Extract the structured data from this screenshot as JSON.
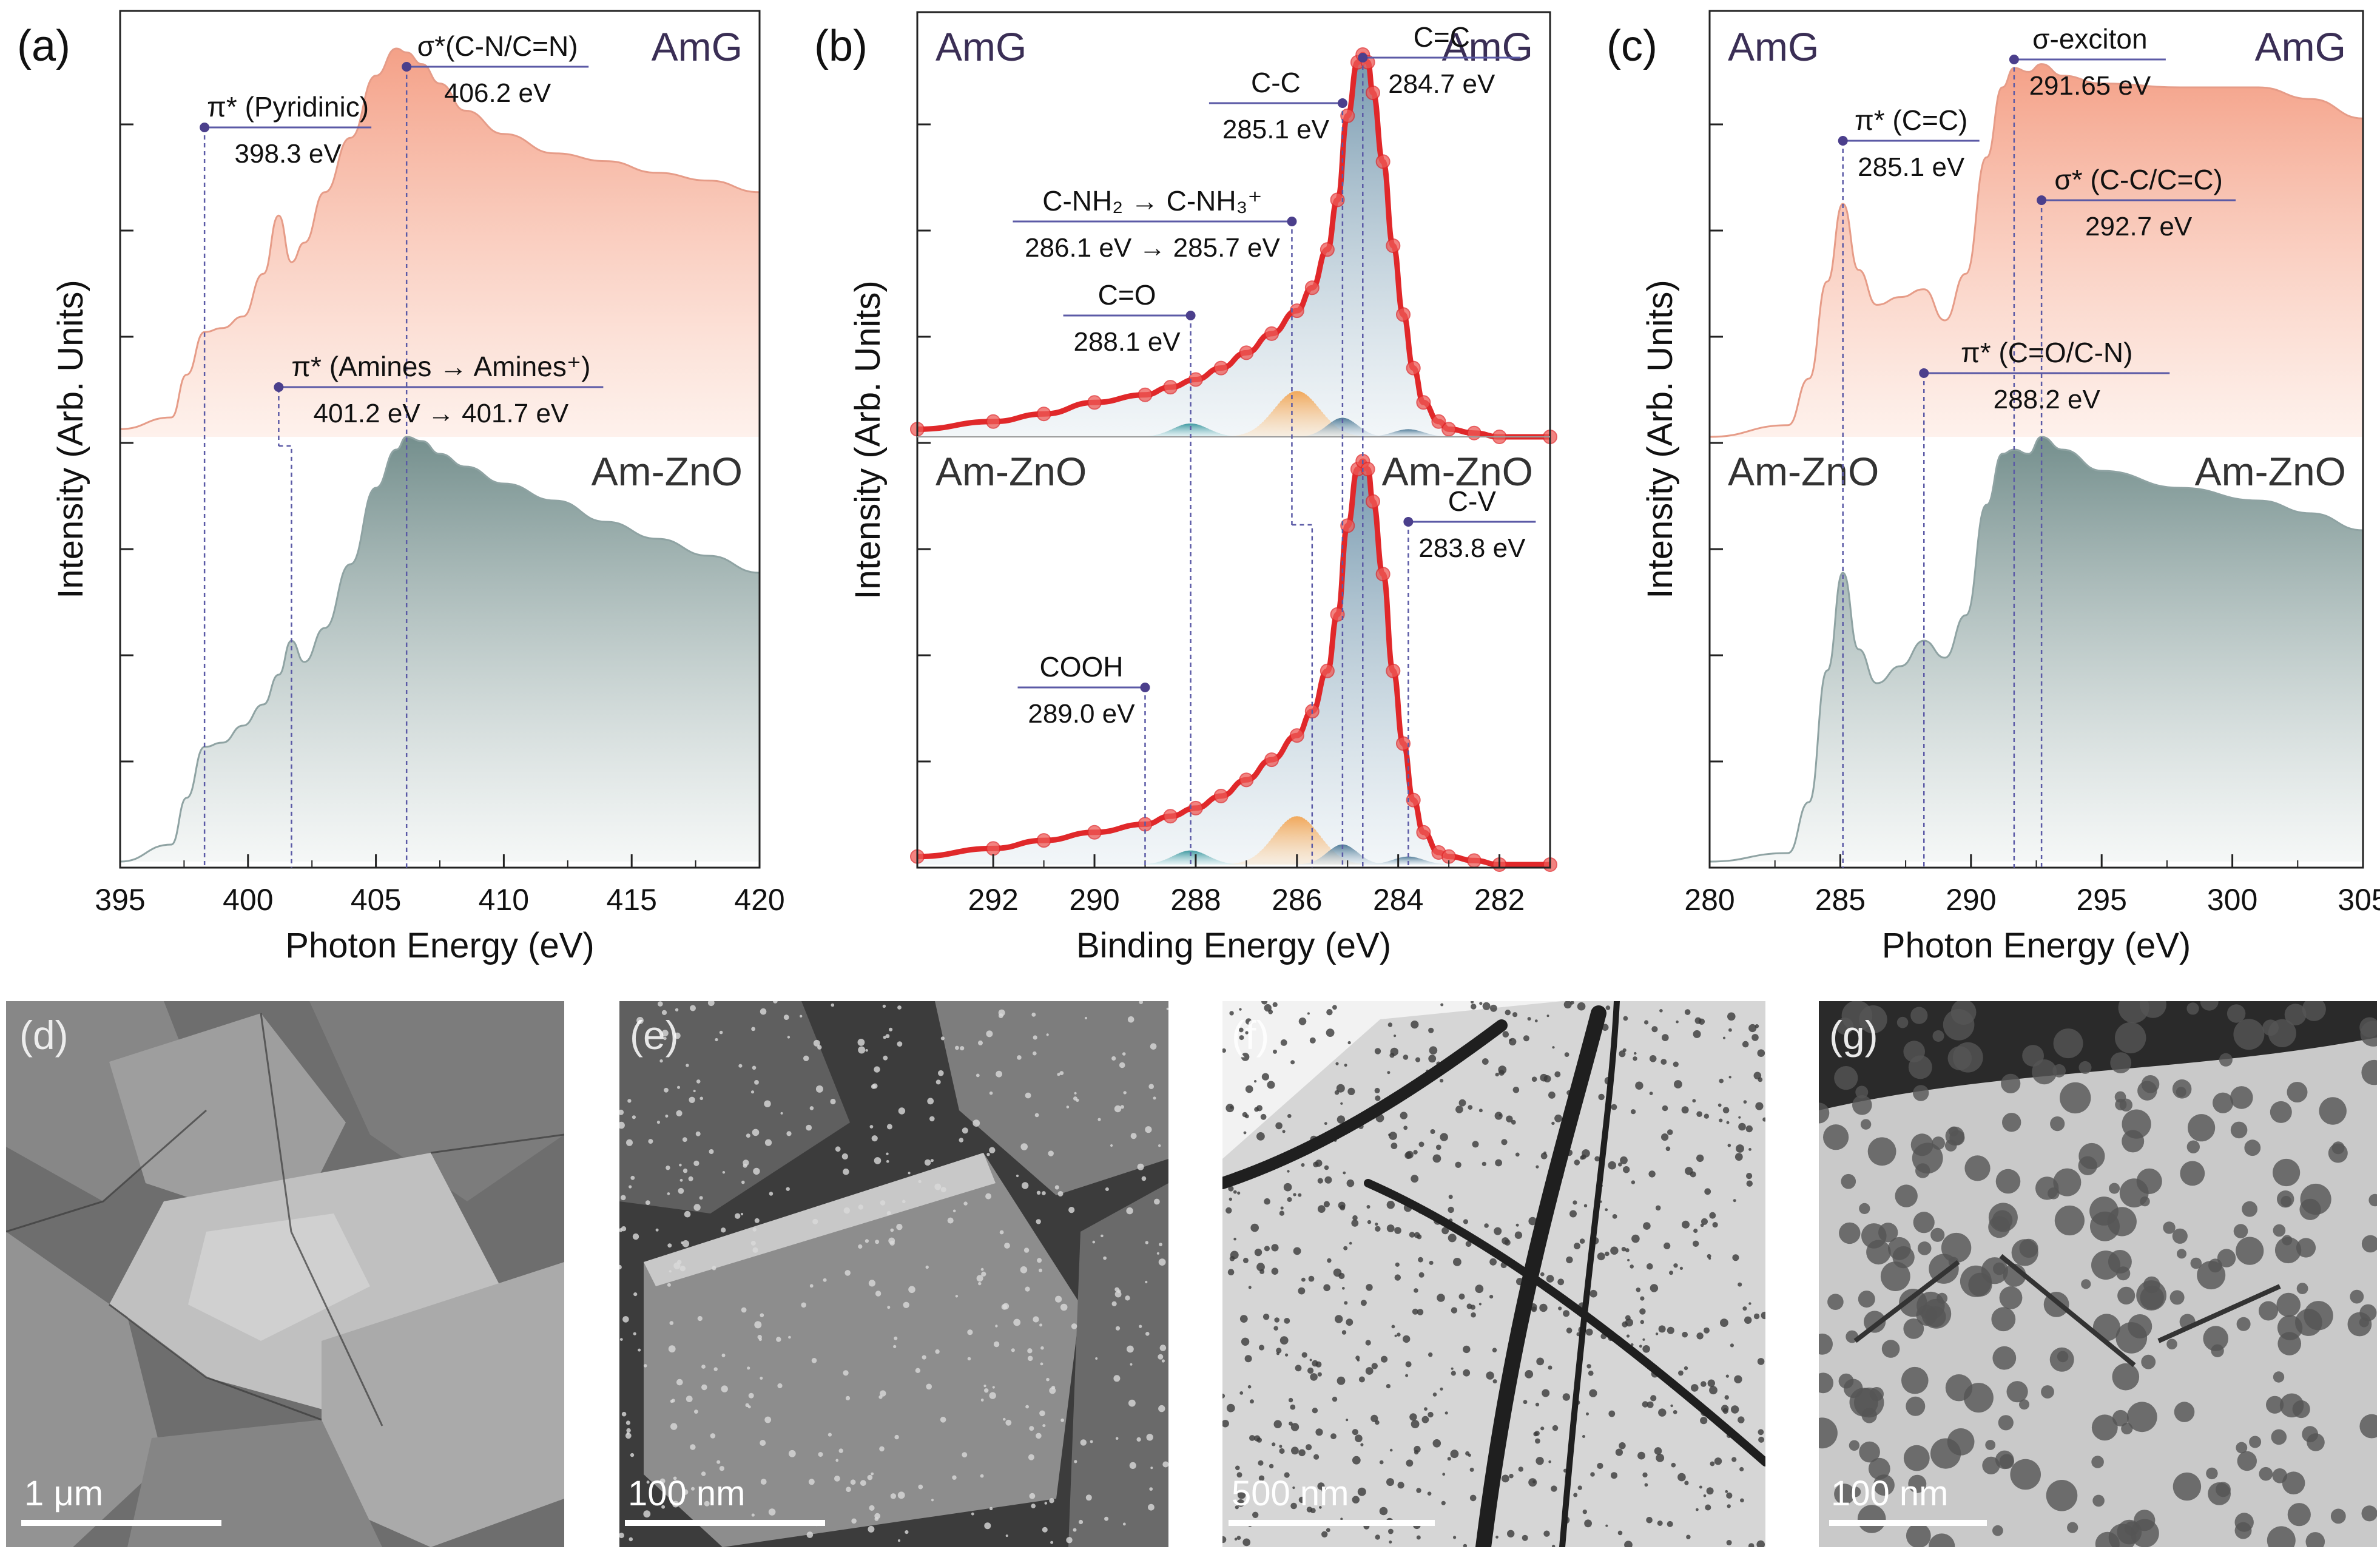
{
  "colors": {
    "amg_fill": "#f4a58d",
    "zno_fill": "#7f9a98",
    "amg_line": "#e69c88",
    "zno_line": "#8fa3a3",
    "marker": "#4b3f8c",
    "guide": "#5b5aa6",
    "fit_red": "#e0282a",
    "cc_fill": "#4f7c98",
    "co_fill": "#2e8f96",
    "nh_fill": "#f0a24a",
    "axis": "#222222"
  },
  "panels": [
    {
      "label": "(a)",
      "xlabel": "Photon Energy (eV)",
      "ylabel": "Intensity (Arb. Units)",
      "top_sample": "AmG",
      "bottom_sample": "Am-ZnO",
      "ticks": [
        "395",
        "400",
        "405",
        "410",
        "415",
        "420"
      ]
    },
    {
      "label": "(b)",
      "xlabel": "Binding Energy (eV)",
      "ylabel": "Intensity (Arb. Units)",
      "top_sample": "AmG",
      "bottom_sample": "Am-ZnO",
      "ticks": [
        "292",
        "290",
        "288",
        "286",
        "284",
        "282"
      ]
    },
    {
      "label": "(c)",
      "xlabel": "Photon Energy (eV)",
      "ylabel": "Intensity (Arb. Units)",
      "top_sample": "AmG",
      "bottom_sample": "Am-ZnO",
      "ticks": [
        "280",
        "285",
        "290",
        "295",
        "300",
        "305"
      ]
    }
  ],
  "annotations": {
    "a": [
      {
        "name": "π* (Pyridinic)",
        "value": "398.3 eV"
      },
      {
        "name": "σ*(C-N/C=N)",
        "value": "406.2 eV"
      },
      {
        "name": "π* (Amines → Amines⁺)",
        "value": "401.2 eV → 401.7 eV"
      }
    ],
    "b": [
      {
        "name": "C=C",
        "value": "284.7 eV"
      },
      {
        "name": "C-C",
        "value": "285.1 eV"
      },
      {
        "name": "C-NH₂ → C-NH₃⁺",
        "value": "286.1 eV → 285.7 eV"
      },
      {
        "name": "C=O",
        "value": "288.1 eV"
      },
      {
        "name": "C-V",
        "value": "283.8 eV"
      },
      {
        "name": "COOH",
        "value": "289.0 eV"
      }
    ],
    "c": [
      {
        "name": "σ-exciton",
        "value": "291.65 eV"
      },
      {
        "name": "π* (C=C)",
        "value": "285.1 eV"
      },
      {
        "name": "σ* (C-C/C=C)",
        "value": "292.7 eV"
      },
      {
        "name": "π* (C=O/C-N)",
        "value": "288.2 eV"
      }
    ]
  },
  "micrographs": [
    {
      "label": "(d)",
      "scale": "1 μm"
    },
    {
      "label": "(e)",
      "scale": "100 nm"
    },
    {
      "label": "(f)",
      "scale": "500 nm"
    },
    {
      "label": "(g)",
      "scale": "100 nm"
    }
  ],
  "chart_data": [
    {
      "type": "area",
      "xlim": [
        395,
        420
      ],
      "y_ticks_labeled": false,
      "series": [
        {
          "name": "AmG",
          "x": [
            395,
            397,
            397.6,
            398.3,
            399,
            399.8,
            400.6,
            401.2,
            401.7,
            402.2,
            403,
            404,
            405,
            405.8,
            406.2,
            406.8,
            407.5,
            408.5,
            410,
            412,
            414,
            416,
            418,
            420
          ],
          "y": [
            0.02,
            0.05,
            0.16,
            0.27,
            0.28,
            0.31,
            0.42,
            0.57,
            0.45,
            0.5,
            0.63,
            0.77,
            0.93,
            1.0,
            0.99,
            0.96,
            0.91,
            0.84,
            0.78,
            0.73,
            0.71,
            0.68,
            0.66,
            0.63
          ]
        },
        {
          "name": "Am-ZnO",
          "x": [
            395,
            397,
            397.6,
            398.3,
            399,
            399.8,
            400.6,
            401.2,
            401.7,
            402.2,
            403,
            404,
            405,
            405.8,
            406.2,
            406.8,
            407.5,
            408.5,
            410,
            412,
            414,
            416,
            418,
            420
          ],
          "y": [
            0.0,
            0.04,
            0.15,
            0.27,
            0.28,
            0.32,
            0.37,
            0.44,
            0.52,
            0.47,
            0.55,
            0.7,
            0.88,
            0.97,
            1.0,
            0.99,
            0.96,
            0.93,
            0.89,
            0.85,
            0.8,
            0.76,
            0.72,
            0.68
          ]
        }
      ]
    },
    {
      "type": "scatter",
      "xlim": [
        293.5,
        281.0
      ],
      "y_ticks_labeled": false,
      "series": [
        {
          "name": "AmG",
          "x": [
            293.5,
            292,
            291,
            290,
            289,
            288.5,
            288,
            287.5,
            287,
            286.5,
            286,
            285.7,
            285.4,
            285.2,
            285,
            284.8,
            284.7,
            284.6,
            284.5,
            284.3,
            284.1,
            283.9,
            283.7,
            283.5,
            283.2,
            283,
            282.5,
            282,
            281
          ],
          "y": [
            0.02,
            0.04,
            0.06,
            0.09,
            0.11,
            0.13,
            0.15,
            0.18,
            0.22,
            0.27,
            0.33,
            0.39,
            0.49,
            0.62,
            0.84,
            0.98,
            1.0,
            0.98,
            0.9,
            0.72,
            0.5,
            0.32,
            0.18,
            0.09,
            0.04,
            0.02,
            0.01,
            0.0,
            0.0
          ]
        },
        {
          "name": "Am-ZnO",
          "x": [
            293.5,
            292,
            291,
            290,
            289,
            288.5,
            288,
            287.5,
            287,
            286.5,
            286,
            285.7,
            285.4,
            285.2,
            285,
            284.8,
            284.7,
            284.6,
            284.5,
            284.3,
            284.1,
            283.9,
            283.7,
            283.5,
            283.2,
            283,
            282.5,
            282,
            281
          ],
          "y": [
            0.02,
            0.04,
            0.06,
            0.08,
            0.1,
            0.12,
            0.14,
            0.17,
            0.21,
            0.26,
            0.32,
            0.38,
            0.48,
            0.62,
            0.84,
            0.98,
            1.0,
            0.98,
            0.9,
            0.72,
            0.48,
            0.3,
            0.16,
            0.08,
            0.03,
            0.02,
            0.01,
            0.0,
            0.0
          ]
        }
      ]
    },
    {
      "type": "area",
      "xlim": [
        280,
        305
      ],
      "y_ticks_labeled": false,
      "series": [
        {
          "name": "AmG",
          "x": [
            280,
            283,
            283.8,
            284.5,
            285.1,
            285.7,
            286.4,
            287.3,
            288.2,
            289,
            289.8,
            290.6,
            291.2,
            291.65,
            292.2,
            292.7,
            293.5,
            295,
            298,
            301,
            303,
            305
          ],
          "y": [
            0.0,
            0.03,
            0.15,
            0.4,
            0.6,
            0.43,
            0.34,
            0.36,
            0.38,
            0.3,
            0.42,
            0.72,
            0.9,
            0.95,
            0.94,
            0.96,
            0.93,
            0.91,
            0.9,
            0.9,
            0.87,
            0.82
          ]
        },
        {
          "name": "Am-ZnO",
          "x": [
            280,
            283,
            283.8,
            284.5,
            285.1,
            285.7,
            286.4,
            287.3,
            288.2,
            289,
            289.8,
            290.6,
            291.2,
            291.65,
            292.2,
            292.7,
            293.5,
            295,
            298,
            301,
            303,
            305
          ],
          "y": [
            0.0,
            0.02,
            0.14,
            0.45,
            0.68,
            0.5,
            0.42,
            0.46,
            0.52,
            0.48,
            0.58,
            0.84,
            0.96,
            0.97,
            0.96,
            1.0,
            0.97,
            0.92,
            0.88,
            0.85,
            0.82,
            0.78
          ]
        }
      ]
    }
  ]
}
